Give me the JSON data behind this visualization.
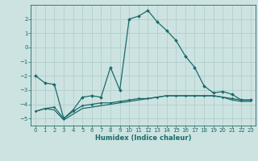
{
  "xlabel": "Humidex (Indice chaleur)",
  "xlim": [
    -0.5,
    23.5
  ],
  "ylim": [
    -5.5,
    3.0
  ],
  "xticks": [
    0,
    1,
    2,
    3,
    4,
    5,
    6,
    7,
    8,
    9,
    10,
    11,
    12,
    13,
    14,
    15,
    16,
    17,
    18,
    19,
    20,
    21,
    22,
    23
  ],
  "yticks": [
    -5,
    -4,
    -3,
    -2,
    -1,
    0,
    1,
    2
  ],
  "bg_color": "#cde3e1",
  "grid_color": "#b0cfcc",
  "line_color": "#1a6b6b",
  "line1_x": [
    0,
    1,
    2,
    3,
    4,
    5,
    6,
    7,
    8,
    9,
    10,
    11,
    12,
    13,
    14,
    15,
    16,
    17,
    18,
    19,
    20,
    21,
    22,
    23
  ],
  "line1_y": [
    -2.0,
    -2.5,
    -2.6,
    -5.0,
    -4.4,
    -3.5,
    -3.4,
    -3.5,
    -1.4,
    -3.0,
    2.0,
    2.2,
    2.6,
    1.8,
    1.2,
    0.5,
    -0.6,
    -1.4,
    -2.7,
    -3.2,
    -3.1,
    -3.3,
    -3.7,
    -3.7
  ],
  "line2_x": [
    0,
    1,
    2,
    3,
    4,
    5,
    6,
    7,
    8,
    9,
    10,
    11,
    12,
    13,
    14,
    15,
    16,
    17,
    18,
    19,
    20,
    21,
    22,
    23
  ],
  "line2_y": [
    -4.5,
    -4.3,
    -4.2,
    -5.0,
    -4.5,
    -4.1,
    -4.0,
    -3.9,
    -3.9,
    -3.8,
    -3.7,
    -3.6,
    -3.6,
    -3.5,
    -3.4,
    -3.4,
    -3.4,
    -3.4,
    -3.4,
    -3.4,
    -3.5,
    -3.6,
    -3.7,
    -3.7
  ],
  "line3_x": [
    0,
    1,
    2,
    3,
    4,
    5,
    6,
    7,
    8,
    9,
    10,
    11,
    12,
    13,
    14,
    15,
    16,
    17,
    18,
    19,
    20,
    21,
    22,
    23
  ],
  "line3_y": [
    -4.5,
    -4.3,
    -4.4,
    -5.1,
    -4.7,
    -4.3,
    -4.2,
    -4.1,
    -4.0,
    -3.9,
    -3.8,
    -3.7,
    -3.6,
    -3.5,
    -3.4,
    -3.4,
    -3.4,
    -3.4,
    -3.4,
    -3.4,
    -3.5,
    -3.7,
    -3.8,
    -3.8
  ],
  "tick_fontsize": 5.0,
  "xlabel_fontsize": 6.0
}
